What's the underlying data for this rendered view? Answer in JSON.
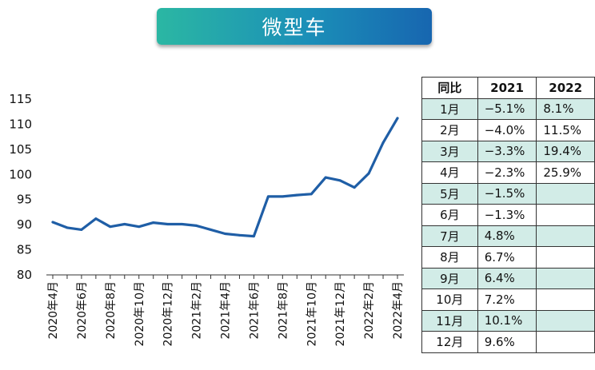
{
  "title": "微型车",
  "chart_data": {
    "type": "line",
    "categories": [
      "2020年4月",
      "2020年5月",
      "2020年6月",
      "2020年7月",
      "2020年8月",
      "2020年9月",
      "2020年10月",
      "2020年11月",
      "2020年12月",
      "2021年1月",
      "2021年2月",
      "2021年3月",
      "2021年4月",
      "2021年5月",
      "2021年6月",
      "2021年7月",
      "2021年8月",
      "2021年9月",
      "2021年10月",
      "2021年11月",
      "2021年12月",
      "2022年1月",
      "2022年2月",
      "2022年3月",
      "2022年4月"
    ],
    "x_tick_labels": [
      "2020年4月",
      "2020年6月",
      "2020年8月",
      "2020年10月",
      "2020年12月",
      "2021年2月",
      "2021年4月",
      "2021年6月",
      "2021年8月",
      "2021年10月",
      "2021年12月",
      "2022年2月",
      "2022年4月"
    ],
    "series": [
      {
        "values": [
          90.5,
          89.4,
          89.0,
          91.2,
          89.6,
          90.1,
          89.6,
          90.4,
          90.1,
          90.1,
          89.8,
          89.0,
          88.2,
          87.9,
          87.7,
          95.6,
          95.6,
          95.9,
          96.1,
          99.4,
          98.8,
          97.4,
          100.2,
          106.3,
          111.2
        ],
        "color": "#1f5ea6"
      }
    ],
    "yticks": [
      80,
      85,
      90,
      95,
      100,
      105,
      110,
      115
    ],
    "ylim": [
      80,
      115
    ],
    "grid": false
  },
  "table": {
    "headers": [
      "同比",
      "2021",
      "2022"
    ],
    "rows": [
      {
        "month": "1月",
        "v2021": "−5.1%",
        "v2022": "8.1%"
      },
      {
        "month": "2月",
        "v2021": "−4.0%",
        "v2022": "11.5%"
      },
      {
        "month": "3月",
        "v2021": "−3.3%",
        "v2022": "19.4%"
      },
      {
        "month": "4月",
        "v2021": "−2.3%",
        "v2022": "25.9%"
      },
      {
        "month": "5月",
        "v2021": "−1.5%",
        "v2022": ""
      },
      {
        "month": "6月",
        "v2021": "−1.3%",
        "v2022": ""
      },
      {
        "month": "7月",
        "v2021": "4.8%",
        "v2022": ""
      },
      {
        "month": "8月",
        "v2021": "6.7%",
        "v2022": ""
      },
      {
        "month": "9月",
        "v2021": "6.4%",
        "v2022": ""
      },
      {
        "month": "10月",
        "v2021": "7.2%",
        "v2022": ""
      },
      {
        "month": "11月",
        "v2021": "10.1%",
        "v2022": ""
      },
      {
        "month": "12月",
        "v2021": "9.6%",
        "v2022": ""
      }
    ],
    "shade_color": "#d2ece7"
  }
}
